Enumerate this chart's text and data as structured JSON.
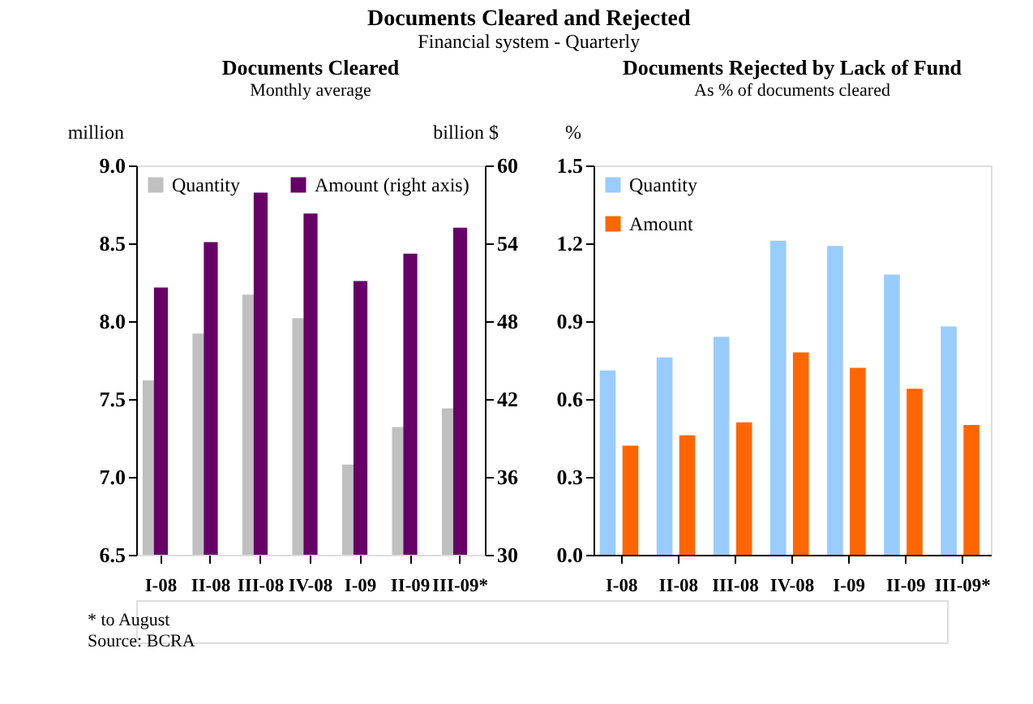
{
  "chart_data": [
    {
      "type": "bar",
      "title": "Documents Cleared",
      "subtitle": "Monthly average",
      "ylabel": "million",
      "y2label": "billion $",
      "annotations": [
        "Documents Cleared and Rejected",
        "Financial system - Quarterly",
        "* to August",
        "Source: BCRA"
      ],
      "categories": [
        "I-08",
        "II-08",
        "III-08",
        "IV-08",
        "I-09",
        "II-09",
        "III-09*"
      ],
      "series": [
        {
          "name": "Quantity",
          "color": "#c0c0c0",
          "values": [
            7.62,
            7.92,
            8.17,
            8.02,
            7.08,
            7.32,
            7.44
          ]
        },
        {
          "name": "Amount (right axis)",
          "color": "#660066",
          "axis": "y2",
          "values": [
            50.6,
            54.1,
            57.9,
            56.3,
            51.1,
            53.2,
            55.2
          ]
        }
      ],
      "ylim": [
        6.5,
        9.0
      ],
      "yticks": [
        {
          "value": 6.5,
          "label": "6.5"
        },
        {
          "value": 7.0,
          "label": "7.0"
        },
        {
          "value": 7.5,
          "label": "7.5"
        },
        {
          "value": 8.0,
          "label": "8.0"
        },
        {
          "value": 8.5,
          "label": "8.5"
        },
        {
          "value": 9.0,
          "label": "9.0"
        }
      ],
      "y2lim": [
        30,
        60
      ],
      "y2ticks": [
        30,
        36,
        42,
        48,
        54,
        60
      ],
      "grid": false,
      "legend": "top"
    },
    {
      "type": "bar",
      "title": "Documents Rejected by Lack of Fund",
      "subtitle": "As % of documents cleared",
      "ylabel": "%",
      "categories": [
        "I-08",
        "II-08",
        "III-08",
        "IV-08",
        "I-09",
        "II-09",
        "III-09*"
      ],
      "series": [
        {
          "name": "Quantity",
          "color": "#99ccff",
          "values": [
            0.71,
            0.76,
            0.84,
            1.21,
            1.19,
            1.08,
            0.88
          ]
        },
        {
          "name": "Amount",
          "color": "#ff6600",
          "values": [
            0.42,
            0.46,
            0.51,
            0.78,
            0.72,
            0.64,
            0.5
          ]
        }
      ],
      "ylim": [
        0,
        1.5
      ],
      "yticks": [
        {
          "value": 0,
          "label": "0.0"
        },
        {
          "value": 0.3,
          "label": "0.3"
        },
        {
          "value": 0.6,
          "label": "0.6"
        },
        {
          "value": 0.9,
          "label": "0.9"
        },
        {
          "value": 1.2,
          "label": "1.2"
        },
        {
          "value": 1.5,
          "label": "1.5"
        }
      ],
      "grid": false,
      "legend": "top left"
    }
  ]
}
